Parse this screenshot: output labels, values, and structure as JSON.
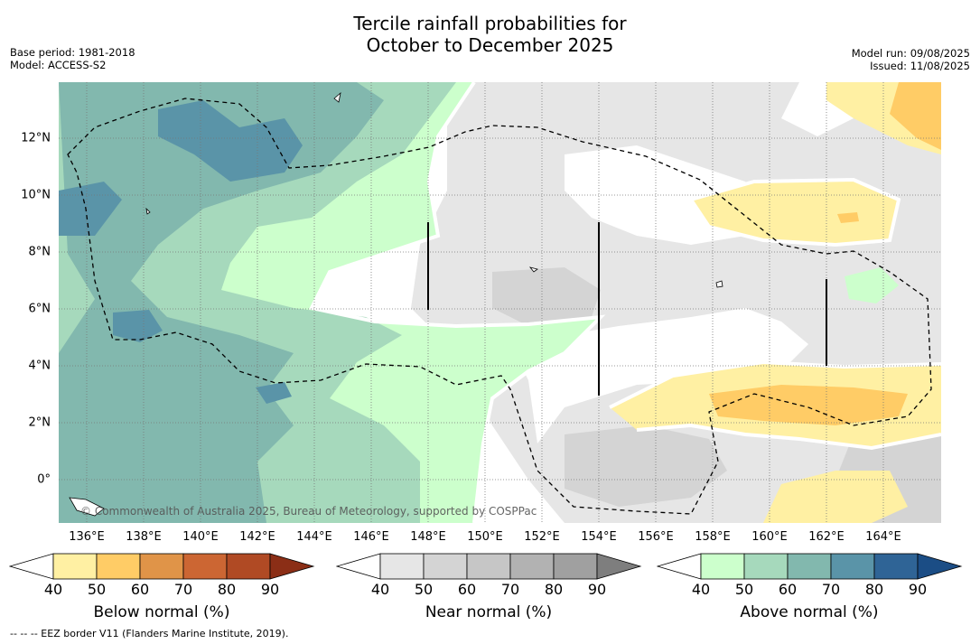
{
  "title": {
    "line1": "Tercile rainfall probabilities for",
    "line2": "October to December 2025"
  },
  "meta": {
    "base_period": "Base period: 1981-2018",
    "model": "Model: ACCESS-S2",
    "model_run": "Model run: 09/08/2025",
    "issued": "Issued: 11/08/2025"
  },
  "map": {
    "lon_labels": [
      "136°E",
      "138°E",
      "140°E",
      "142°E",
      "144°E",
      "146°E",
      "148°E",
      "150°E",
      "152°E",
      "154°E",
      "156°E",
      "158°E",
      "160°E",
      "162°E",
      "164°E"
    ],
    "lat_labels": [
      "12°N",
      "10°N",
      "8°N",
      "6°N",
      "4°N",
      "2°N",
      "0°"
    ],
    "copyright": "© Commonwealth of Australia 2025, Bureau of Meteorology, supported by COSPPac"
  },
  "colorbars": [
    {
      "label": "Below normal (%)",
      "ticks": [
        "40",
        "50",
        "60",
        "70",
        "80",
        "90"
      ],
      "colors": [
        "#ffffff",
        "#fff0a3",
        "#ffcc66",
        "#e09448",
        "#cc6633",
        "#b04a24",
        "#8b2e16"
      ]
    },
    {
      "label": "Near normal (%)",
      "ticks": [
        "40",
        "50",
        "60",
        "70",
        "80",
        "90"
      ],
      "colors": [
        "#ffffff",
        "#e6e6e6",
        "#d4d4d4",
        "#c6c6c6",
        "#b2b2b2",
        "#a0a0a0",
        "#7e7e7e"
      ]
    },
    {
      "label": "Above normal (%)",
      "ticks": [
        "40",
        "50",
        "60",
        "70",
        "80",
        "90"
      ],
      "colors": [
        "#ffffff",
        "#ccffcc",
        "#a6d9bc",
        "#82b8ae",
        "#5a94a8",
        "#2f6496",
        "#1b4d85"
      ]
    }
  ],
  "footnote": "--  --  -- EEZ border V11 (Flanders Marine Institute, 2019)."
}
